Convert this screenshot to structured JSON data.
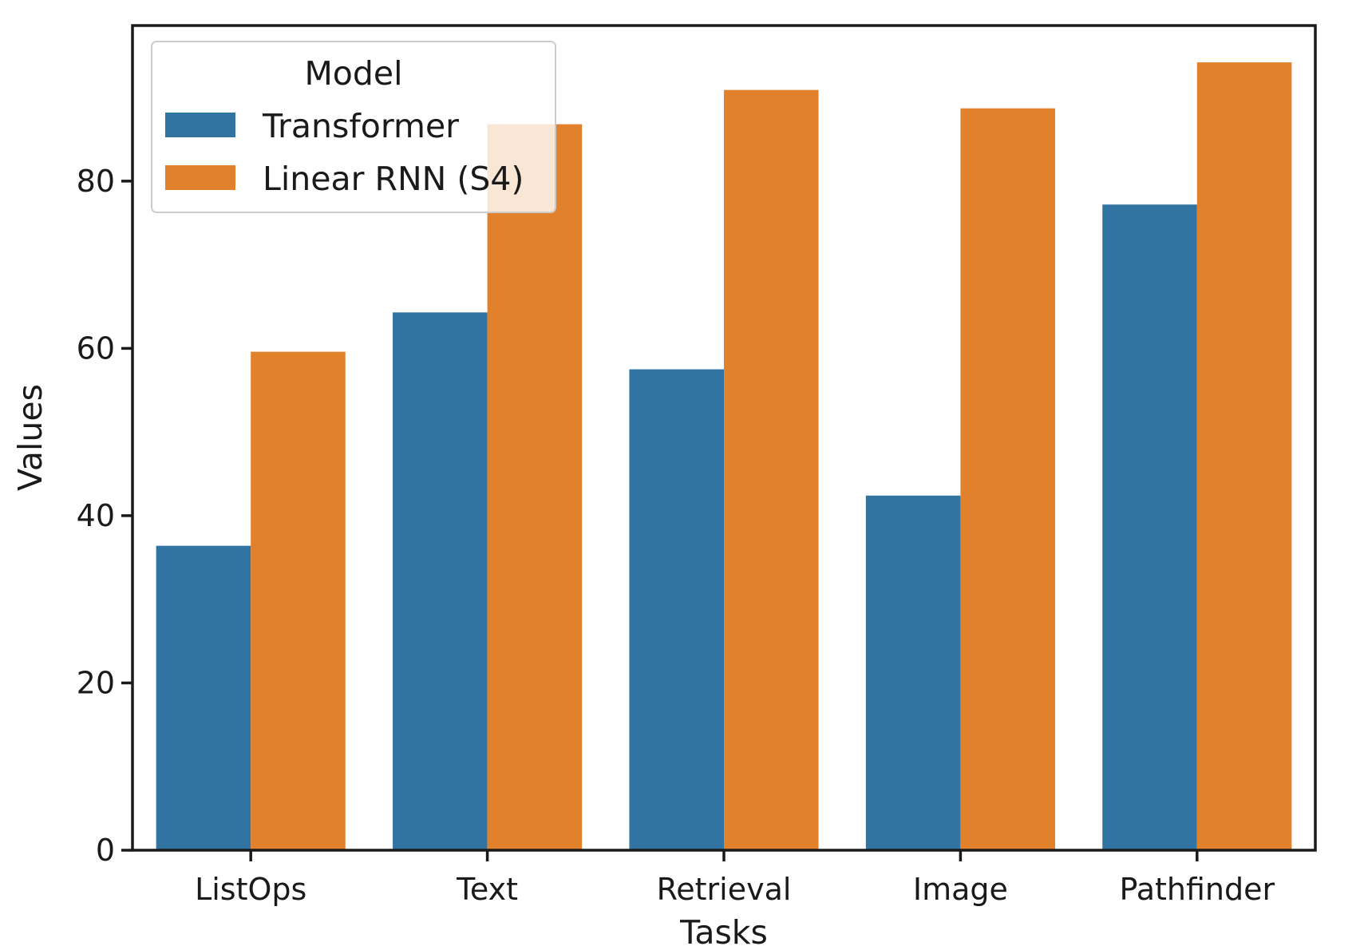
{
  "chart_data": {
    "type": "bar",
    "xlabel": "Tasks",
    "ylabel": "Values",
    "categories": [
      "ListOps",
      "Text",
      "Retrieval",
      "Image",
      "Pathfinder"
    ],
    "series": [
      {
        "name": "Transformer",
        "color": "#3274a1",
        "values": [
          36.4,
          64.3,
          57.5,
          42.4,
          77.2
        ]
      },
      {
        "name": "Linear RNN (S4)",
        "color": "#e1812c",
        "values": [
          59.6,
          86.8,
          90.9,
          88.7,
          94.2
        ]
      }
    ],
    "ylim": [
      0,
      98.6
    ],
    "yticks": [
      0,
      20,
      40,
      60,
      80
    ],
    "grid": false,
    "legend": {
      "title": "Model",
      "position": "top-left"
    }
  }
}
